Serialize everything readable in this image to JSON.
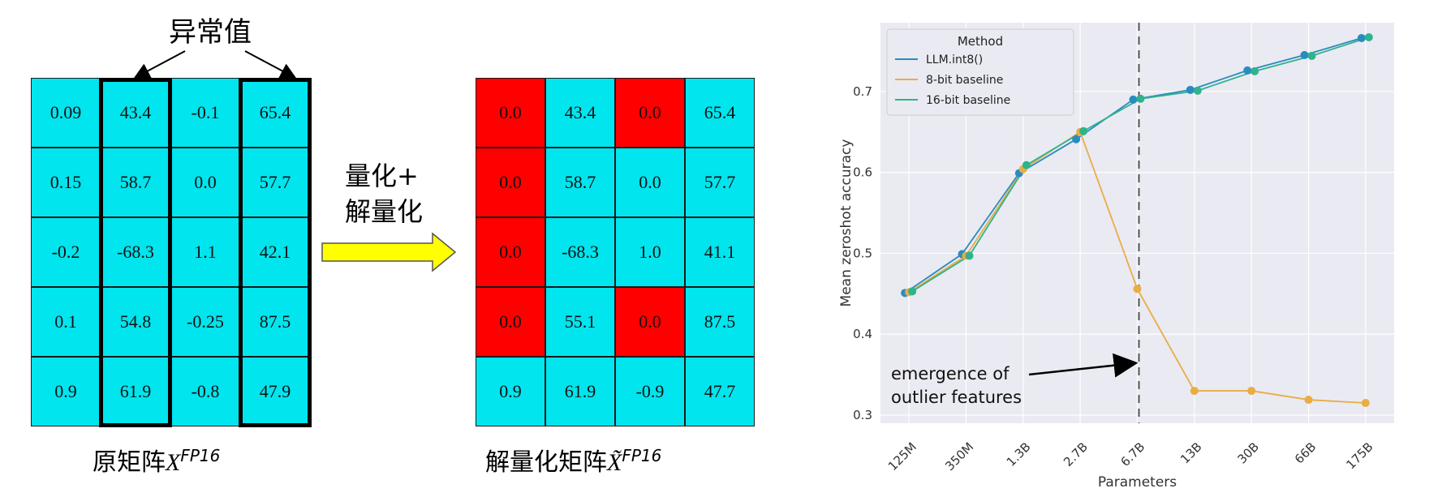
{
  "left_matrix": {
    "label": "异常值",
    "caption_prefix": "原矩阵",
    "caption_math": "X",
    "caption_sup": "FP16",
    "rows": [
      [
        "0.09",
        "43.4",
        "-0.1",
        "65.4"
      ],
      [
        "0.15",
        "58.7",
        "0.0",
        "57.7"
      ],
      [
        "-0.2",
        "-68.3",
        "1.1",
        "42.1"
      ],
      [
        "0.1",
        "54.8",
        "-0.25",
        "87.5"
      ],
      [
        "0.9",
        "61.9",
        "-0.8",
        "47.9"
      ]
    ],
    "outlier_columns": [
      1,
      3
    ]
  },
  "arrow": {
    "line1": "量化+",
    "line2": "解量化",
    "color": "#ffff00"
  },
  "right_matrix": {
    "caption_prefix": "解量化矩阵",
    "caption_math": "X̃",
    "caption_sup": "FP16",
    "rows": [
      [
        "0.0",
        "43.4",
        "0.0",
        "65.4"
      ],
      [
        "0.0",
        "58.7",
        "0.0",
        "57.7"
      ],
      [
        "0.0",
        "-68.3",
        "1.0",
        "41.1"
      ],
      [
        "0.0",
        "55.1",
        "0.0",
        "87.5"
      ],
      [
        "0.9",
        "61.9",
        "-0.9",
        "47.7"
      ]
    ],
    "red_cells": [
      [
        0,
        0
      ],
      [
        0,
        2
      ],
      [
        1,
        0
      ],
      [
        2,
        0
      ],
      [
        3,
        0
      ],
      [
        3,
        2
      ]
    ]
  },
  "colors": {
    "cell": "#00e5ee",
    "red": "#ff0000"
  },
  "chart_data": {
    "type": "line",
    "xlabel": "Parameters",
    "ylabel": "Mean zeroshot accuracy",
    "categories": [
      "125M",
      "350M",
      "1.3B",
      "2.7B",
      "6.7B",
      "13B",
      "30B",
      "66B",
      "175B"
    ],
    "ylim": [
      0.29,
      0.785
    ],
    "yticks": [
      "0.3",
      "0.4",
      "0.5",
      "0.6",
      "0.7"
    ],
    "grid": true,
    "legend_title": "Method",
    "legend_position": "top-left",
    "series": [
      {
        "name": "LLM.int8()",
        "color": "#2a8bbf",
        "values": [
          0.451,
          0.499,
          0.599,
          0.641,
          0.69,
          0.702,
          0.726,
          0.745,
          0.766
        ]
      },
      {
        "name": "8-bit baseline",
        "color": "#e8ad45",
        "values": [
          0.452,
          0.497,
          0.604,
          0.65,
          0.456,
          0.33,
          0.33,
          0.319,
          0.315
        ]
      },
      {
        "name": "16-bit baseline",
        "color": "#2fb38c",
        "values": [
          0.453,
          0.497,
          0.609,
          0.651,
          0.691,
          0.701,
          0.725,
          0.744,
          0.767
        ]
      }
    ],
    "vline_at": "6.7B",
    "annotation_line1": "emergence of",
    "annotation_line2": "outlier features"
  }
}
